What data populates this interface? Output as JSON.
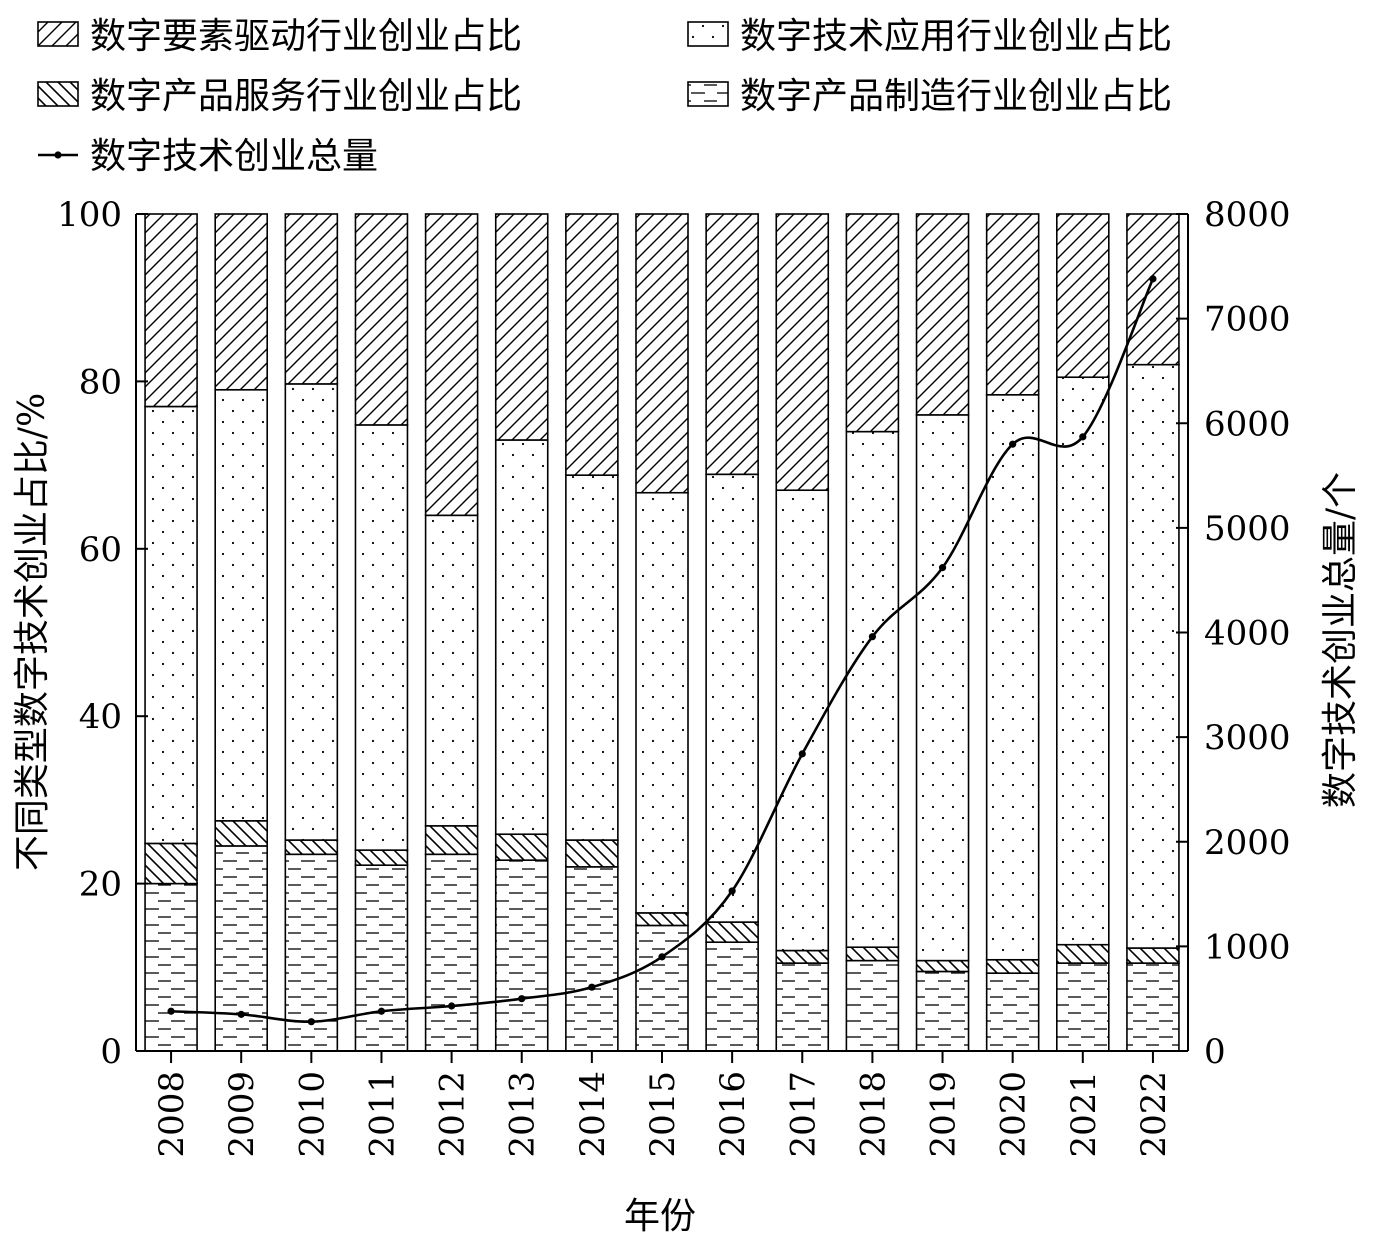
{
  "chart_data": {
    "type": "bar",
    "stacked": true,
    "xlabel": "年份",
    "ylabel_left": "不同类型数字技术创业占比/%",
    "ylabel_right": "数字技术创业总量/个",
    "ylim_left": [
      0,
      100
    ],
    "ylim_right": [
      0,
      8000
    ],
    "yticks_left": [
      "0",
      "20",
      "40",
      "60",
      "80",
      "100"
    ],
    "yticks_right": [
      "0",
      "1000",
      "2000",
      "3000",
      "4000",
      "5000",
      "6000",
      "7000",
      "8000"
    ],
    "categories": [
      "2008",
      "2009",
      "2010",
      "2011",
      "2012",
      "2013",
      "2014",
      "2015",
      "2016",
      "2017",
      "2018",
      "2019",
      "2020",
      "2021",
      "2022"
    ],
    "legend_position": "top",
    "series": [
      {
        "name": "数字产品制造行业创业占比",
        "pattern": "dashes",
        "values": [
          20.0,
          24.5,
          23.5,
          22.2,
          23.5,
          22.8,
          22.0,
          15.0,
          13.0,
          10.5,
          10.8,
          9.5,
          9.3,
          10.5,
          10.5
        ]
      },
      {
        "name": "数字产品服务行业创业占比",
        "pattern": "backslash",
        "values": [
          4.8,
          3.0,
          1.7,
          1.8,
          3.4,
          3.1,
          3.2,
          1.5,
          2.4,
          1.5,
          1.6,
          1.3,
          1.6,
          2.2,
          1.8
        ]
      },
      {
        "name": "数字技术应用行业创业占比",
        "pattern": "dots",
        "values": [
          52.2,
          51.5,
          54.5,
          50.8,
          37.1,
          47.1,
          43.6,
          50.2,
          53.5,
          55.0,
          61.6,
          65.2,
          67.5,
          67.8,
          69.7
        ]
      },
      {
        "name": "数字要素驱动行业创业占比",
        "pattern": "slash",
        "values": [
          23.0,
          21.0,
          20.3,
          25.2,
          36.0,
          27.0,
          31.2,
          33.3,
          31.1,
          33.0,
          26.0,
          24.0,
          21.6,
          19.5,
          18.0
        ]
      }
    ],
    "line": {
      "name": "数字技术创业总量",
      "axis": "right",
      "values": [
        380,
        350,
        280,
        380,
        430,
        500,
        610,
        900,
        1530,
        2840,
        3960,
        4620,
        5800,
        5870,
        7380
      ]
    },
    "legend_order": [
      "数字要素驱动行业创业占比",
      "数字技术应用行业创业占比",
      "数字产品服务行业创业占比",
      "数字产品制造行业创业占比",
      "数字技术创业总量"
    ]
  }
}
